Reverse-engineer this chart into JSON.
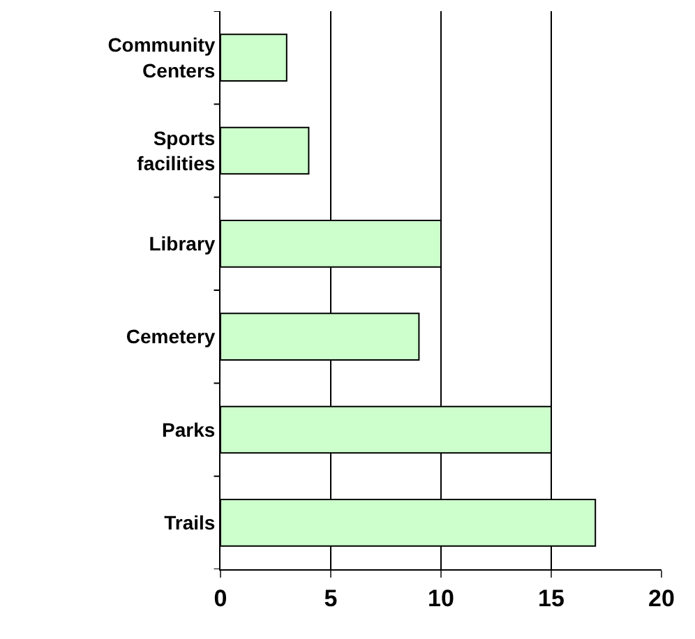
{
  "chart_data": {
    "type": "bar",
    "orientation": "horizontal",
    "categories": [
      "Community Centers",
      "Sports facilities",
      "Library",
      "Cemetery",
      "Parks",
      "Trails"
    ],
    "values": [
      3,
      4,
      10,
      9,
      15,
      17
    ],
    "color": "#ccffcc",
    "xlim": [
      0,
      20
    ],
    "xticks": [
      0,
      5,
      10,
      15,
      20
    ],
    "grid": "x"
  }
}
